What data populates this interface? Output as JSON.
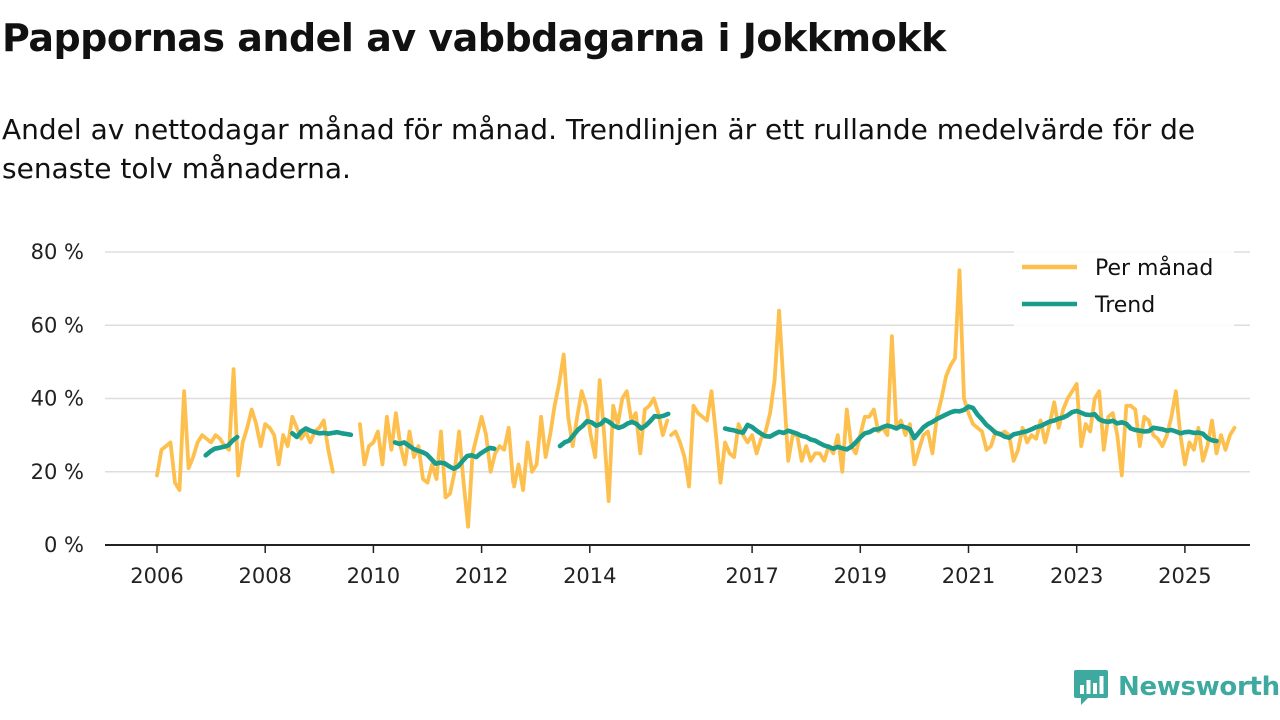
{
  "title": "Pappornas andel av vabbdagarna i Jokkmokk",
  "subtitle": "Andel av nettodagar månad för månad. Trendlinjen är ett rullande medelvärde för de senaste tolv månaderna.",
  "brand": {
    "name": "Newsworthy",
    "icon": "bar-chart-speech-bubble-icon"
  },
  "colors": {
    "monthly": "#fdc04f",
    "trend": "#1a9c8c",
    "grid": "#dddddd",
    "axis": "#222222",
    "brand": "#3ea99f"
  },
  "chart_data": {
    "type": "line",
    "title": "Pappornas andel av vabbdagarna i Jokkmokk",
    "xlabel": "",
    "ylabel": "",
    "xlim": [
      2005.6,
      2026.3
    ],
    "ylim": [
      0,
      80
    ],
    "yticks": [
      0,
      20,
      40,
      60,
      80
    ],
    "ytick_labels": [
      "0 %",
      "20 %",
      "40 %",
      "60 %",
      "80 %"
    ],
    "xticks": [
      2006,
      2008,
      2010,
      2012,
      2014,
      2017,
      2019,
      2021,
      2023,
      2025
    ],
    "xtick_labels": [
      "2006",
      "2008",
      "2010",
      "2012",
      "2014",
      "2017",
      "2019",
      "2021",
      "2023",
      "2025"
    ],
    "grid": true,
    "legend_position": "top-right",
    "series": [
      {
        "name": "Per månad",
        "color": "#fdc04f",
        "segments": [
          {
            "start": 2006.0,
            "values": [
              19,
              26,
              27,
              28,
              17,
              15,
              42,
              21,
              24,
              28,
              30,
              29,
              28,
              30,
              29,
              27,
              26,
              48,
              19,
              28,
              32,
              37,
              33,
              27,
              33,
              32,
              30,
              22,
              30,
              27,
              35,
              32,
              29,
              31,
              28,
              31,
              32,
              34,
              26,
              20
            ]
          },
          {
            "start": 2009.75,
            "values": [
              33,
              22,
              27,
              28,
              31,
              22,
              35,
              26,
              36,
              27,
              22,
              31,
              24,
              27,
              18,
              17,
              22,
              18,
              31,
              13,
              14,
              20,
              31,
              17,
              5,
              25,
              30,
              35,
              30,
              20,
              25,
              27,
              26,
              32,
              17
            ]
          },
          {
            "start": 2012.6,
            "values": [
              16,
              22,
              15,
              28,
              20,
              22,
              35,
              24,
              30,
              38,
              44,
              52,
              35,
              27,
              35,
              42,
              38,
              30,
              24,
              45,
              30,
              12,
              38,
              33,
              40,
              42,
              34,
              36,
              25,
              37,
              38,
              40,
              36,
              30,
              34
            ]
          },
          {
            "start": 2015.5,
            "values": [
              30,
              31,
              28,
              24,
              16,
              38,
              36,
              35,
              34,
              42,
              30,
              17,
              28,
              25,
              24,
              33,
              30,
              28,
              30,
              25,
              29,
              31,
              36,
              45,
              64,
              43,
              23,
              30,
              30,
              23,
              27,
              23,
              25,
              25,
              23,
              27,
              25,
              30,
              20,
              37,
              27,
              25,
              30,
              35,
              35,
              37,
              31,
              32,
              30,
              57,
              32,
              34,
              30,
              33,
              22,
              26,
              30,
              31,
              25,
              35,
              40,
              46,
              49,
              51,
              75,
              40,
              36,
              33,
              32,
              31,
              26,
              27,
              31,
              30,
              31,
              30,
              23,
              26,
              32,
              28,
              30,
              29,
              34,
              28,
              33,
              39,
              32,
              37,
              40,
              42,
              44,
              27,
              33,
              31,
              40,
              42,
              26,
              35,
              36,
              30,
              19,
              38,
              38,
              37,
              27,
              35,
              34,
              30,
              29,
              27,
              30,
              35,
              42,
              30,
              22,
              28,
              26,
              32,
              23,
              27,
              34,
              25,
              30,
              26,
              30,
              32
            ]
          }
        ]
      },
      {
        "name": "Trend",
        "color": "#1a9c8c",
        "segments": [
          {
            "start": 2006.9,
            "values": [
              24.5,
              25.5,
              26.3,
              26.5,
              26.8,
              27.2,
              28.5,
              29.5
            ]
          },
          {
            "start": 2008.5,
            "values": [
              30.5,
              29.5,
              31.0,
              31.8,
              31.2,
              30.8,
              30.5,
              30.6,
              30.4,
              30.6,
              30.8,
              30.5,
              30.3,
              30.1
            ]
          },
          {
            "start": 2010.4,
            "values": [
              28.0,
              27.6,
              28.0,
              27.2,
              26.3,
              25.8,
              25.4,
              24.8,
              23.5,
              22.2,
              22.5,
              22.3,
              21.5,
              20.8,
              21.5,
              23.0,
              24.3,
              24.5,
              24.0,
              25.0,
              25.8,
              26.5,
              26.3
            ]
          },
          {
            "start": 2013.45,
            "values": [
              27.0,
              28.0,
              28.5,
              30.0,
              31.5,
              32.5,
              33.8,
              33.5,
              32.6,
              33.0,
              34.2,
              33.5,
              32.5,
              32.0,
              32.4,
              33.2,
              33.6,
              33.0,
              31.8,
              32.6,
              33.8,
              35.2,
              35.0,
              35.3,
              35.8
            ]
          },
          {
            "start": 2016.5,
            "values": [
              31.8,
              31.5,
              31.3,
              30.9,
              30.7,
              32.8,
              32.2,
              31.2,
              30.4,
              29.7,
              29.6,
              30.3,
              30.9,
              30.6,
              31.2,
              30.8,
              30.4,
              29.8,
              29.5,
              28.8,
              28.5,
              27.8,
              27.2,
              26.8,
              26.3,
              26.8,
              26.4,
              26.1,
              26.8,
              28.0,
              29.4,
              30.5,
              30.8,
              31.5,
              31.6,
              32.2,
              32.6,
              32.3,
              31.8,
              32.5,
              32.1,
              31.6,
              29.2,
              30.7,
              32.1,
              33.0,
              33.6,
              34.4,
              35.0,
              35.6,
              36.2,
              36.6,
              36.5,
              36.9,
              37.8,
              37.4,
              35.6,
              34.3,
              32.8,
              31.8,
              30.6,
              30.3,
              29.6,
              29.3,
              30.2,
              30.5,
              30.8,
              31.1,
              31.6,
              32.2,
              32.5,
              33.1,
              33.7,
              34.0,
              34.5,
              34.8,
              35.4,
              36.3,
              36.6,
              36.1,
              35.6,
              35.5,
              35.7,
              34.3,
              33.8,
              33.6,
              33.9,
              33.2,
              33.5,
              33.1,
              31.8,
              31.4,
              31.2,
              31.0,
              31.1,
              32.0,
              31.8,
              31.6,
              31.2,
              31.4,
              31.0,
              30.5,
              30.8,
              30.9,
              30.6,
              30.7,
              30.4,
              29.2,
              28.6,
              28.4
            ]
          }
        ]
      }
    ]
  }
}
